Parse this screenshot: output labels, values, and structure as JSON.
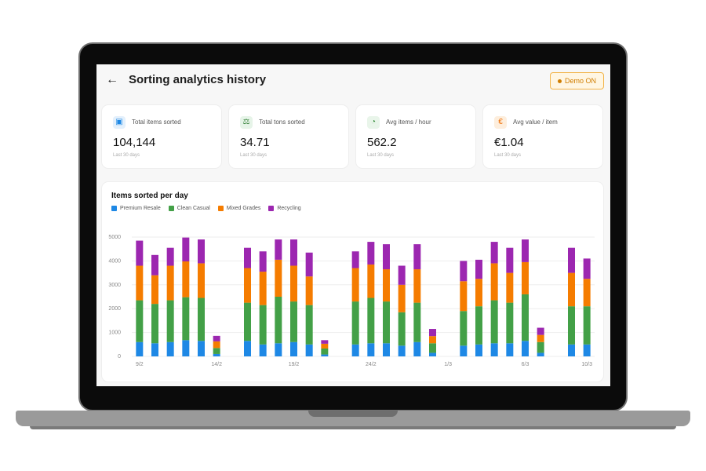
{
  "header": {
    "back_icon": "←",
    "title": "Sorting analytics history",
    "demo_label": "Demo ON"
  },
  "kpis": [
    {
      "label": "Total items sorted",
      "value": "104,144",
      "sub": "Last 30 days",
      "icon": "box-icon",
      "icon_glyph": "▣",
      "color": "#1e88e5",
      "bg": "#e3f0fc"
    },
    {
      "label": "Total tons sorted",
      "value": "34.71",
      "sub": "Last 30 days",
      "icon": "scale-icon",
      "icon_glyph": "⚖",
      "color": "#2e7d32",
      "bg": "#e6f4e8"
    },
    {
      "label": "Avg items / hour",
      "value": "562.2",
      "sub": "Last 30 days",
      "icon": "speed-icon",
      "icon_glyph": "◔",
      "color": "#388e3c",
      "bg": "#e9f5ea"
    },
    {
      "label": "Avg value / item",
      "value": "€1.04",
      "sub": "Last 30 days",
      "icon": "euro-icon",
      "icon_glyph": "€",
      "color": "#ef6c00",
      "bg": "#fdeedd"
    }
  ],
  "chart_data": {
    "type": "bar",
    "stacked": true,
    "title": "Items sorted per day",
    "legend_position": "top-left",
    "grid": true,
    "ylim": [
      0,
      5000
    ],
    "yticks": [
      0,
      1000,
      2000,
      3000,
      4000,
      5000
    ],
    "categories": [
      "9/2",
      "10/2",
      "11/2",
      "12/2",
      "13/2",
      "14/2",
      "15/2",
      "16/2",
      "17/2",
      "18/2",
      "19/2",
      "20/2",
      "21/2",
      "22/2",
      "23/2",
      "24/2",
      "25/2",
      "26/2",
      "27/2",
      "28/2",
      "1/3",
      "2/3",
      "3/3",
      "4/3",
      "5/3",
      "6/3",
      "7/3",
      "8/3",
      "9/3",
      "10/3"
    ],
    "xtick_labels": [
      "9/2",
      "14/2",
      "19/2",
      "24/2",
      "1/3",
      "6/3",
      "10/3"
    ],
    "colors": [
      "#1e88e5",
      "#43a047",
      "#f57c00",
      "#9c27b0"
    ],
    "series": [
      {
        "name": "Premium Resale",
        "values": [
          600,
          550,
          600,
          680,
          650,
          100,
          0,
          650,
          500,
          550,
          600,
          500,
          80,
          0,
          500,
          550,
          550,
          450,
          600,
          150,
          0,
          450,
          500,
          550,
          550,
          650,
          150,
          0,
          500,
          500
        ]
      },
      {
        "name": "Clean Casual",
        "values": [
          1750,
          1650,
          1750,
          1800,
          1800,
          250,
          0,
          1600,
          1650,
          1950,
          1700,
          1650,
          250,
          0,
          1800,
          1900,
          1750,
          1400,
          1650,
          400,
          0,
          1450,
          1600,
          1800,
          1700,
          1950,
          450,
          0,
          1600,
          1600
        ]
      },
      {
        "name": "Mixed Grades",
        "values": [
          1450,
          1200,
          1450,
          1500,
          1450,
          280,
          0,
          1450,
          1400,
          1550,
          1500,
          1200,
          200,
          0,
          1400,
          1400,
          1350,
          1150,
          1400,
          300,
          0,
          1250,
          1150,
          1550,
          1250,
          1350,
          300,
          0,
          1400,
          1150
        ]
      },
      {
        "name": "Recycling",
        "values": [
          1050,
          850,
          750,
          1000,
          1000,
          230,
          0,
          850,
          850,
          850,
          1100,
          1000,
          150,
          0,
          700,
          950,
          1050,
          800,
          1050,
          300,
          0,
          850,
          800,
          900,
          1050,
          950,
          300,
          0,
          1050,
          850
        ]
      }
    ]
  }
}
